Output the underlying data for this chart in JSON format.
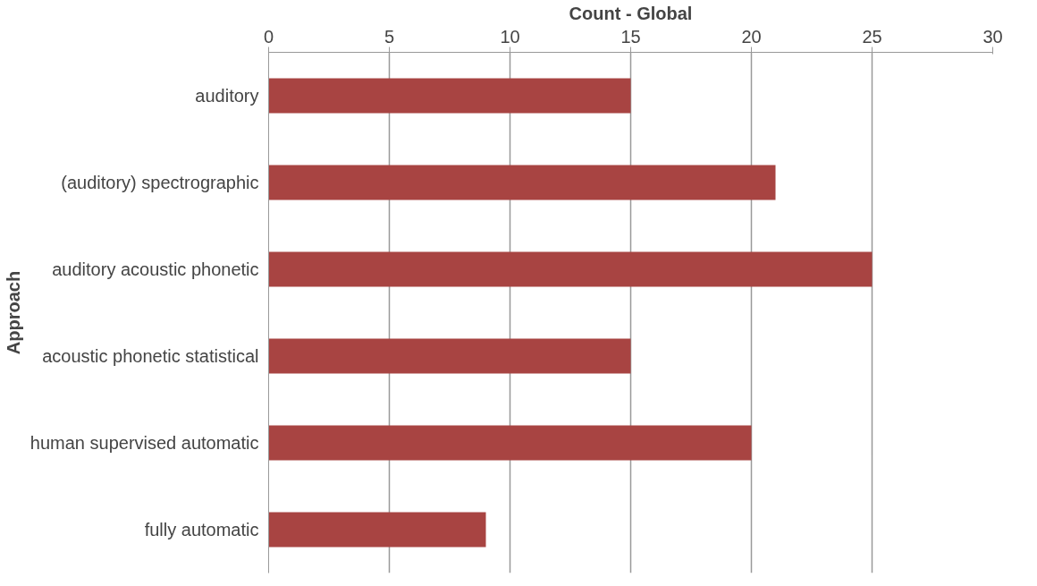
{
  "chart_data": {
    "type": "bar",
    "orientation": "horizontal",
    "xlabel": "Count - Global",
    "ylabel": "Approach",
    "categories": [
      "auditory",
      "(auditory) spectrographic",
      "auditory acoustic phonetic",
      "acoustic phonetic statistical",
      "human supervised automatic",
      "fully automatic"
    ],
    "values": [
      15,
      21,
      25,
      15,
      20,
      9
    ],
    "color": "#a84442",
    "xlim": [
      0,
      30
    ],
    "xticks": [
      0,
      5,
      10,
      15,
      20,
      25,
      30
    ],
    "grid": "x"
  }
}
